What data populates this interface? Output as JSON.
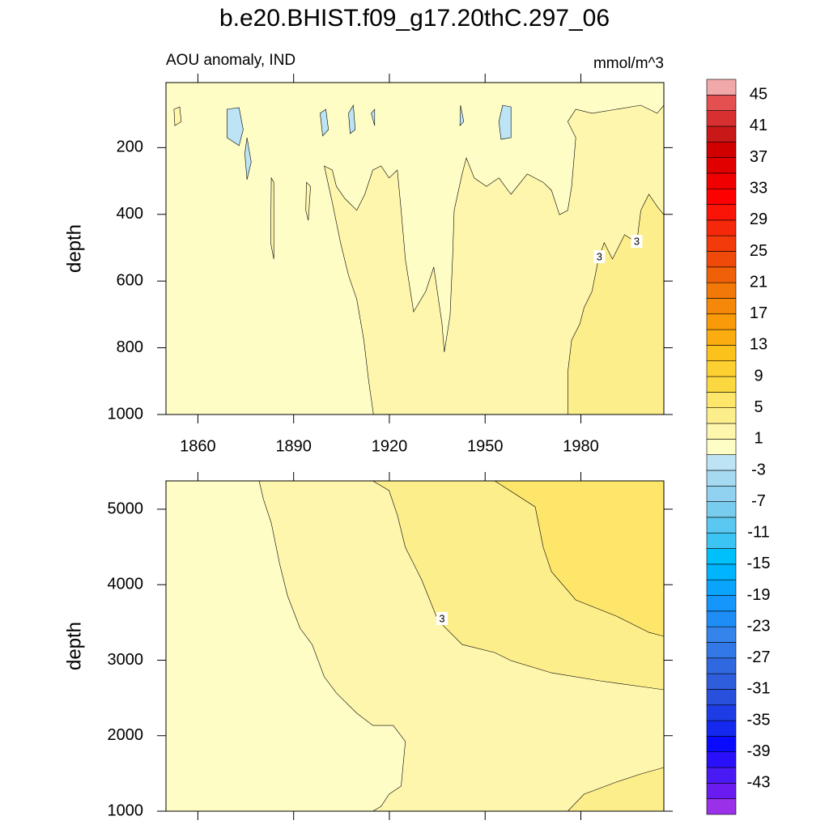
{
  "chart_data": [
    {
      "type": "contour",
      "title": "b.e20.BHIST.f09_g17.20thC.297_06",
      "subtitle_left": "AOU anomaly, IND",
      "subtitle_right": "mmol/m^3",
      "ylabel": "depth",
      "xlim": [
        1850,
        2006
      ],
      "ylim": [
        1000,
        5
      ],
      "xticks": [
        1860,
        1890,
        1920,
        1950,
        1980
      ],
      "yticks": [
        200,
        400,
        600,
        800,
        1000
      ],
      "show_xtick_labels": true,
      "regions": [
        {
          "value": 0,
          "points": [
            [
              1850,
              5
            ],
            [
              2006,
              5
            ],
            [
              2006,
              1000
            ],
            [
              1850,
              1000
            ]
          ]
        },
        {
          "value": 2,
          "points": [
            [
              1915,
              1000
            ],
            [
              1913.5,
              898
            ],
            [
              1912,
              777
            ],
            [
              1909.8,
              655
            ],
            [
              1907.2,
              583
            ],
            [
              1904.7,
              485
            ],
            [
              1902.1,
              364
            ],
            [
              1899.6,
              255
            ],
            [
              1902.1,
              267
            ],
            [
              1903.4,
              316
            ],
            [
              1906,
              352
            ],
            [
              1909.8,
              388
            ],
            [
              1912.3,
              340
            ],
            [
              1914.8,
              267
            ],
            [
              1917.4,
              255
            ],
            [
              1919.9,
              291
            ],
            [
              1922.5,
              267
            ],
            [
              1923.7,
              388
            ],
            [
              1925,
              534
            ],
            [
              1927.6,
              692
            ],
            [
              1931.4,
              631
            ],
            [
              1933.9,
              558
            ],
            [
              1936.5,
              728
            ],
            [
              1937.2,
              813
            ],
            [
              1939,
              704
            ],
            [
              1939.8,
              534
            ],
            [
              1940.3,
              388
            ],
            [
              1942.8,
              279
            ],
            [
              1944.1,
              231
            ],
            [
              1946.6,
              291
            ],
            [
              1950.4,
              316
            ],
            [
              1954.3,
              291
            ],
            [
              1958.1,
              340
            ],
            [
              1963.2,
              279
            ],
            [
              1968.2,
              304
            ],
            [
              1970.8,
              328
            ],
            [
              1973.3,
              401
            ],
            [
              1975.9,
              388
            ],
            [
              1977.1,
              316
            ],
            [
              1978.4,
              170
            ],
            [
              1975.9,
              122
            ],
            [
              1978.4,
              85
            ],
            [
              1983.5,
              97
            ],
            [
              1991.1,
              85
            ],
            [
              1998.8,
              73
            ],
            [
              2003.9,
              97
            ],
            [
              2006,
              73
            ],
            [
              2006,
              1000
            ]
          ]
        },
        {
          "value": 2,
          "points": [
            [
              1852.5,
              85
            ],
            [
              1854.3,
              78
            ],
            [
              1854.8,
              122
            ],
            [
              1852.8,
              134
            ]
          ]
        },
        {
          "value": 2,
          "points": [
            [
              1883,
              291
            ],
            [
              1883.8,
              304
            ],
            [
              1883.8,
              534
            ],
            [
              1882.8,
              485
            ]
          ]
        },
        {
          "value": 2,
          "points": [
            [
              1894,
              304
            ],
            [
              1895.3,
              316
            ],
            [
              1894.6,
              418
            ],
            [
              1893.8,
              388
            ]
          ]
        },
        {
          "value": 4,
          "points": [
            [
              1975.9,
              1000
            ],
            [
              1975.9,
              874
            ],
            [
              1977.1,
              777
            ],
            [
              1979.7,
              728
            ],
            [
              1981,
              680
            ],
            [
              1983.5,
              631
            ],
            [
              1985.5,
              534
            ],
            [
              1987.3,
              485
            ],
            [
              1989.9,
              534
            ],
            [
              1993.7,
              461
            ],
            [
              1997.5,
              485
            ],
            [
              1998.8,
              388
            ],
            [
              2001.3,
              340
            ],
            [
              2003.9,
              376
            ],
            [
              2006,
              401
            ],
            [
              2006,
              1000
            ]
          ]
        },
        {
          "value": -2,
          "points": [
            [
              1869.1,
              85
            ],
            [
              1872.9,
              80
            ],
            [
              1874.2,
              146
            ],
            [
              1872.9,
              194
            ],
            [
              1869.1,
              170
            ]
          ]
        },
        {
          "value": -2,
          "points": [
            [
              1875.4,
              170
            ],
            [
              1876.7,
              243
            ],
            [
              1875.4,
              296
            ],
            [
              1874.7,
              218
            ]
          ]
        },
        {
          "value": -2,
          "points": [
            [
              1898.3,
              97
            ],
            [
              1900.1,
              85
            ],
            [
              1900.9,
              146
            ],
            [
              1899.1,
              165
            ]
          ]
        },
        {
          "value": -2,
          "points": [
            [
              1907.2,
              97
            ],
            [
              1908.7,
              73
            ],
            [
              1909.3,
              146
            ],
            [
              1907.7,
              158
            ]
          ]
        },
        {
          "value": -2,
          "points": [
            [
              1914.3,
              97
            ],
            [
              1915.4,
              85
            ],
            [
              1915.4,
              134
            ]
          ]
        },
        {
          "value": -2,
          "points": [
            [
              1942.3,
              73
            ],
            [
              1943.3,
              122
            ],
            [
              1942.1,
              134
            ]
          ]
        },
        {
          "value": -2,
          "points": [
            [
              1955.5,
              73
            ],
            [
              1958.1,
              78
            ],
            [
              1958.1,
              170
            ],
            [
              1955,
              175
            ],
            [
              1954.3,
              122
            ]
          ]
        }
      ],
      "contour_labels": [
        {
          "value": 3,
          "x": 1985.8,
          "y": 527
        },
        {
          "value": 3,
          "x": 1997.5,
          "y": 481
        }
      ],
      "colorbar": {
        "levels": [
          -45,
          -43,
          -41,
          -39,
          -37,
          -35,
          -33,
          -31,
          -29,
          -27,
          -25,
          -23,
          -21,
          -19,
          -17,
          -15,
          -13,
          -11,
          -9,
          -7,
          -5,
          -3,
          -1,
          1,
          3,
          5,
          7,
          9,
          11,
          13,
          15,
          17,
          19,
          21,
          23,
          25,
          27,
          29,
          31,
          33,
          35,
          37,
          39,
          41,
          43,
          45
        ],
        "ticks": [
          45,
          41,
          37,
          33,
          29,
          25,
          21,
          17,
          13,
          9,
          5,
          1,
          -3,
          -7,
          -11,
          -15,
          -19,
          -23,
          -27,
          -31,
          -35,
          -39,
          -43
        ],
        "colors": [
          "#9a30e8",
          "#6a1cf0",
          "#4a1af5",
          "#2a10fa",
          "#0a0aff",
          "#1428f0",
          "#1e3ce6",
          "#2850dc",
          "#2e5edc",
          "#3068e0",
          "#3278e6",
          "#3484ec",
          "#1e8ef6",
          "#1496fa",
          "#0aa4fc",
          "#00b4fe",
          "#00c0fc",
          "#3cc4f4",
          "#5ac8f0",
          "#78cced",
          "#90d2f0",
          "#a6daf2",
          "#bce4f4",
          "#fffdc6",
          "#fef6ac",
          "#fdee8c",
          "#fde66a",
          "#fcd840",
          "#fcd030",
          "#fbc21c",
          "#faac10",
          "#f89a0a",
          "#f58808",
          "#f27808",
          "#f06008",
          "#f04a0a",
          "#f23a0a",
          "#f5280a",
          "#fa1408",
          "#ff0000",
          "#f00000",
          "#e00000",
          "#d00000",
          "#c81818",
          "#d83030",
          "#e45050",
          "#f0a8a8"
        ]
      }
    },
    {
      "type": "contour",
      "ylabel": "depth",
      "xlim": [
        1850,
        2006
      ],
      "ylim": [
        1000,
        5375
      ],
      "xticks": [
        1860,
        1890,
        1920,
        1950,
        1980
      ],
      "yticks": [
        1000,
        2000,
        3000,
        4000,
        5000
      ],
      "show_xtick_labels": false,
      "regions": [
        {
          "value": 0,
          "points": [
            [
              1850,
              1000
            ],
            [
              2006,
              1000
            ],
            [
              2006,
              5375
            ],
            [
              1850,
              5375
            ]
          ]
        },
        {
          "value": 2,
          "points": [
            [
              1914.8,
              1000
            ],
            [
              1917.4,
              1064
            ],
            [
              1919.9,
              1225
            ],
            [
              1923.7,
              1332
            ],
            [
              1925,
              1922
            ],
            [
              1921.2,
              2136
            ],
            [
              1914.8,
              2136
            ],
            [
              1909.8,
              2297
            ],
            [
              1903.4,
              2565
            ],
            [
              1899.6,
              2780
            ],
            [
              1895.8,
              3208
            ],
            [
              1892,
              3423
            ],
            [
              1888.1,
              3852
            ],
            [
              1885.6,
              4280
            ],
            [
              1883,
              4816
            ],
            [
              1880.5,
              5138
            ],
            [
              1879.2,
              5375
            ],
            [
              2006,
              5375
            ],
            [
              2006,
              1000
            ]
          ]
        },
        {
          "value": 4,
          "points": [
            [
              1914.8,
              5375
            ],
            [
              1919.9,
              5246
            ],
            [
              1922.5,
              4924
            ],
            [
              1925,
              4495
            ],
            [
              1930.1,
              4066
            ],
            [
              1935.2,
              3530
            ],
            [
              1942.8,
              3208
            ],
            [
              1953,
              3101
            ],
            [
              1958.1,
              2994
            ],
            [
              1970.8,
              2833
            ],
            [
              1986,
              2726
            ],
            [
              1998.8,
              2651
            ],
            [
              2006,
              2608
            ],
            [
              2006,
              5375
            ]
          ]
        },
        {
          "value": 4,
          "points": [
            [
              1975.9,
              1000
            ],
            [
              1981,
              1225
            ],
            [
              1991.1,
              1386
            ],
            [
              1998.8,
              1493
            ],
            [
              2006,
              1579
            ],
            [
              2006,
              1000
            ]
          ]
        },
        {
          "value": 6,
          "points": [
            [
              1953,
              5375
            ],
            [
              1965.7,
              5031
            ],
            [
              1968.2,
              4495
            ],
            [
              1970.8,
              4173
            ],
            [
              1978.4,
              3798
            ],
            [
              1991.1,
              3584
            ],
            [
              2001.3,
              3369
            ],
            [
              2006,
              3316
            ],
            [
              2006,
              5375
            ]
          ]
        }
      ],
      "contour_labels": [
        {
          "value": 3,
          "x": 1936.5,
          "y": 3552
        }
      ]
    }
  ]
}
